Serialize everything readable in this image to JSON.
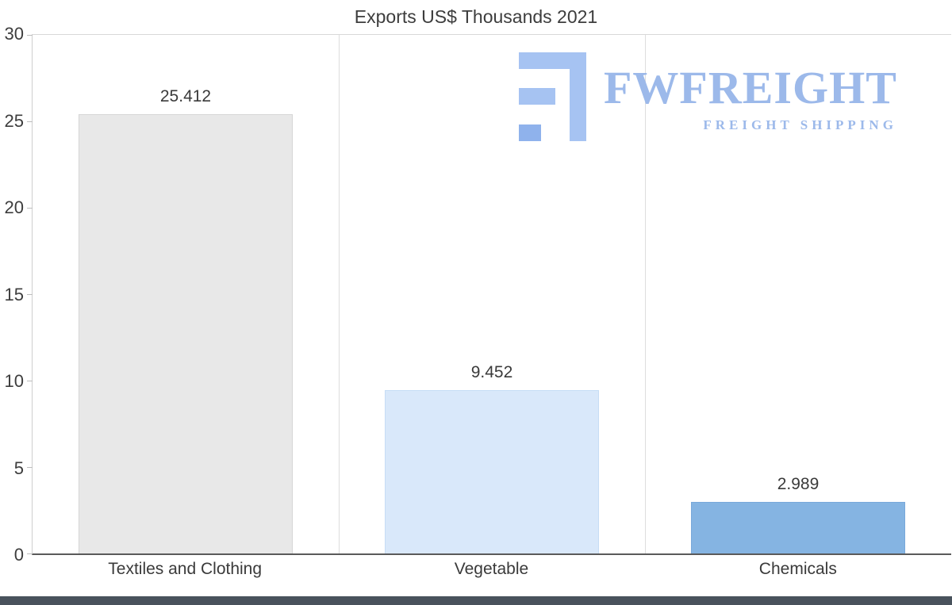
{
  "title": "Exports US$ Thousands 2021",
  "logo": {
    "name": "FWFREIGHT",
    "tagline": "FREIGHT SHIPPING"
  },
  "colors": {
    "logo_blue": "#9cb9ea",
    "logo_icon_blue": "#a6c3f2",
    "logo_icon_accent": "#8fb2ec",
    "footer_bar": "#49525c"
  },
  "chart_data": {
    "type": "bar",
    "title": "Exports US$ Thousands 2021",
    "categories": [
      "Textiles and Clothing",
      "Vegetable",
      "Chemicals"
    ],
    "values": [
      25.412,
      9.452,
      2.989
    ],
    "value_labels": [
      "25.412",
      "9.452",
      "2.989"
    ],
    "bar_colors": [
      "#e8e8e8",
      "#d9e8fa",
      "#85b4e2"
    ],
    "bar_border_colors": [
      "#d6d6d6",
      "#c6ddf5",
      "#79a9da"
    ],
    "xlabel": "",
    "ylabel": "",
    "ylim": [
      0,
      30
    ],
    "yticks": [
      0,
      5,
      10,
      15,
      20,
      25,
      30
    ],
    "grid": "vertical category separators only, top border at y max",
    "legend_position": "none",
    "background": "#ffffff"
  }
}
